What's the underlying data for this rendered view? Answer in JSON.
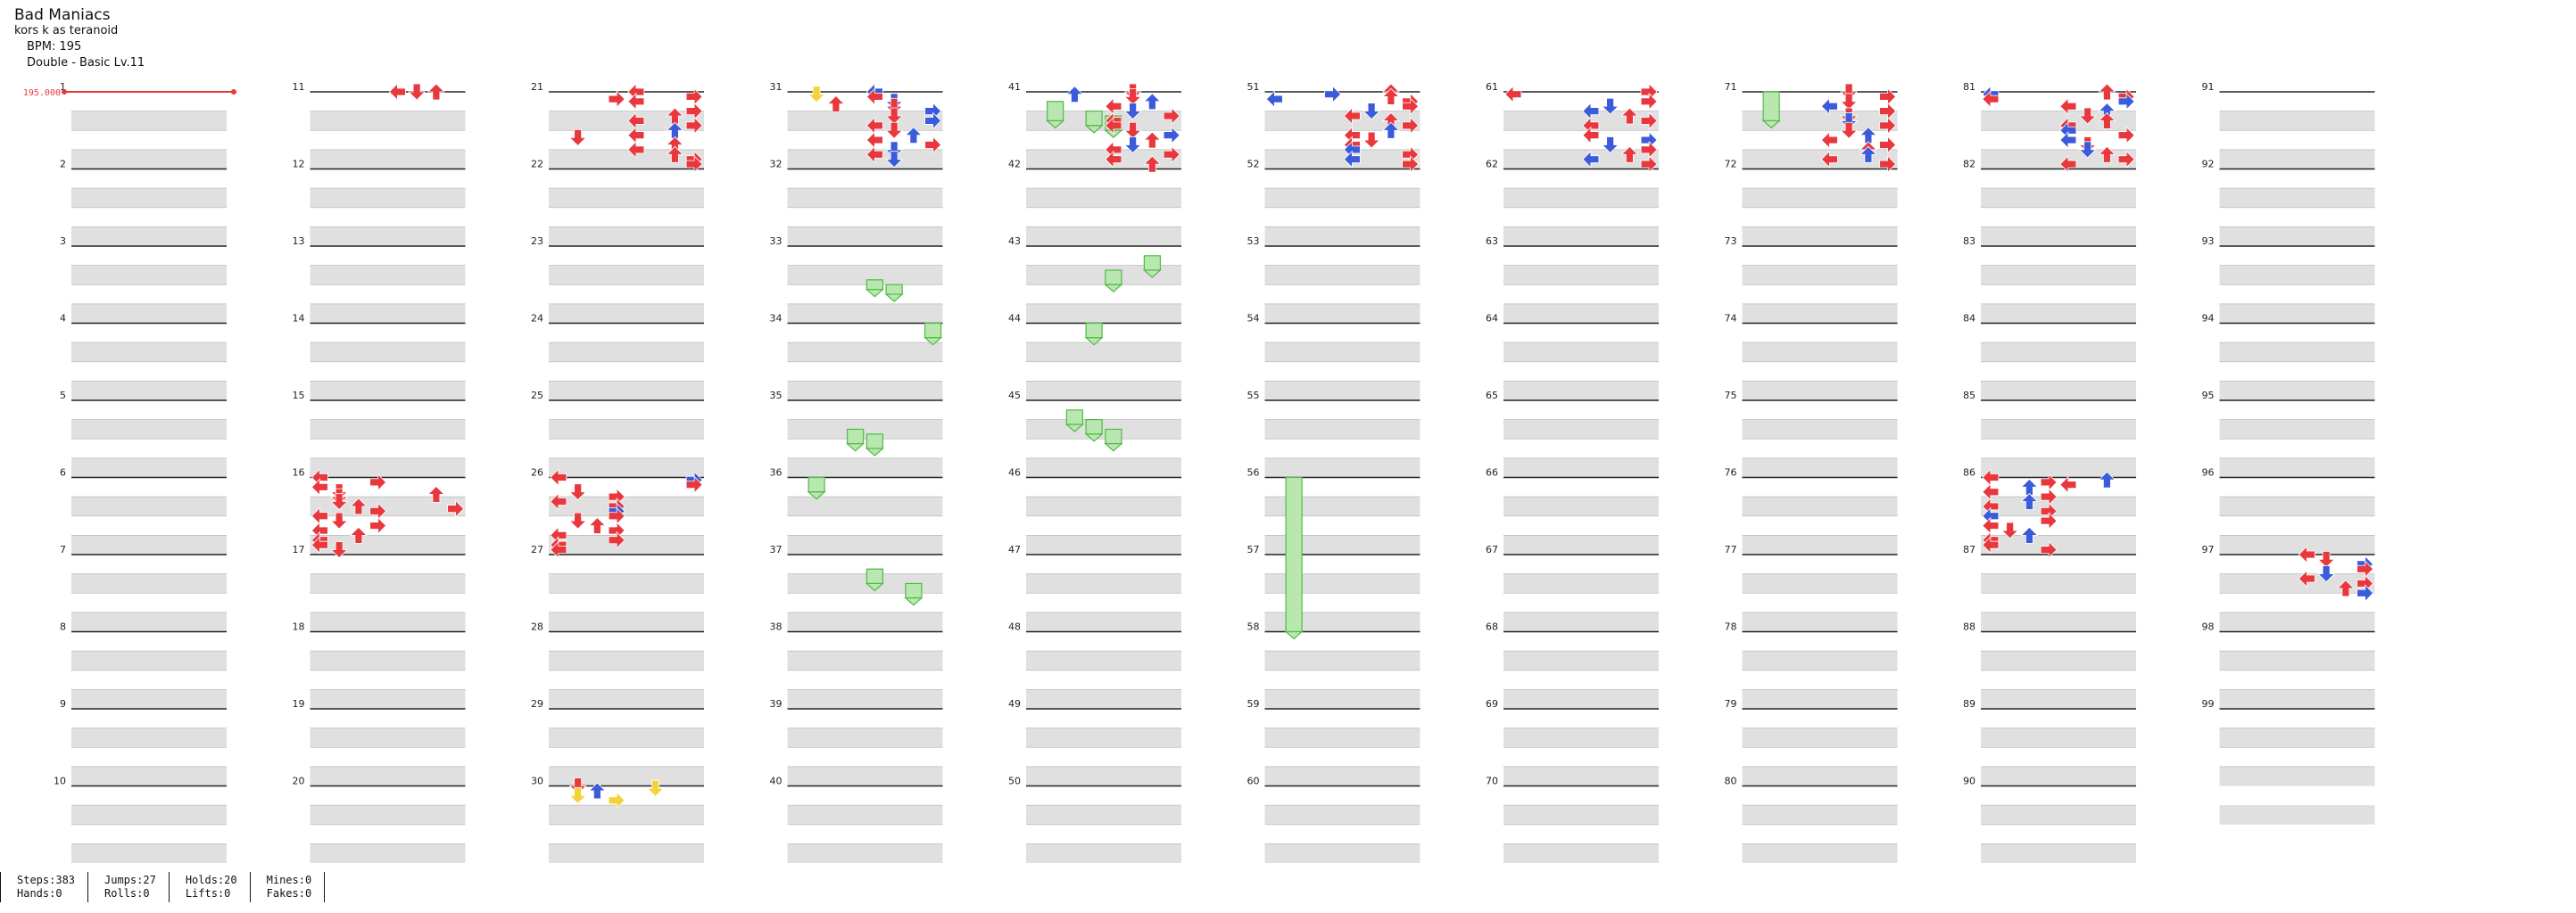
{
  "song": {
    "title": "Bad Maniacs",
    "artist": "kors k as teranoid",
    "bpm_label": "BPM: 195",
    "chart_label": "Double - Basic  Lv.11"
  },
  "bpm_change": {
    "measure": 1,
    "label": "195.000",
    "color": "#e8383d"
  },
  "measure_count": 99,
  "colors": {
    "red_arrow": "#e8383d",
    "blue_arrow": "#3b5bdb",
    "yellow_arrow": "#f2d43a",
    "hold_fill": "#b8e8b0",
    "hold_border": "#52b847",
    "row_shade": "#e0e0e0"
  },
  "sections": {
    "11": [
      [
        0,
        "L",
        "red"
      ],
      [
        0,
        "U",
        "red"
      ],
      [
        0,
        "D",
        "red"
      ]
    ],
    "16": [
      [
        0,
        "L",
        "red"
      ],
      [
        2,
        "R",
        "red"
      ],
      [
        4,
        "L",
        "red"
      ],
      [
        6,
        "D",
        "red"
      ],
      [
        7,
        "U",
        "red"
      ],
      [
        8,
        "D",
        "red"
      ],
      [
        10,
        "D",
        "red"
      ],
      [
        12,
        "U",
        "red"
      ],
      [
        13,
        "R",
        "red"
      ],
      [
        14,
        "R",
        "red"
      ],
      [
        16,
        "L",
        "red"
      ],
      [
        18,
        "D",
        "red"
      ],
      [
        20,
        "R",
        "red"
      ],
      [
        22,
        "L",
        "red"
      ],
      [
        24,
        "U",
        "red"
      ],
      [
        26,
        "L",
        "red"
      ],
      [
        28,
        "L",
        "red"
      ],
      [
        30,
        "D",
        "red"
      ]
    ],
    "21": [
      [
        0,
        "L",
        "red"
      ],
      [
        2,
        "R",
        "red"
      ],
      [
        3,
        "R",
        "red"
      ],
      [
        4,
        "L",
        "red"
      ],
      [
        8,
        "R",
        "red"
      ],
      [
        10,
        "U",
        "red"
      ],
      [
        12,
        "L",
        "red"
      ],
      [
        14,
        "R",
        "red"
      ],
      [
        16,
        "U",
        "blue"
      ],
      [
        18,
        "L",
        "red"
      ],
      [
        19,
        "D",
        "red"
      ],
      [
        22,
        "U",
        "red"
      ],
      [
        24,
        "L",
        "red"
      ],
      [
        26,
        "U",
        "red"
      ],
      [
        28,
        "R",
        "red"
      ],
      [
        30,
        "R",
        "red"
      ]
    ],
    "26": [
      [
        0,
        "L",
        "red"
      ],
      [
        1,
        "R",
        "blue"
      ],
      [
        3,
        "R",
        "red"
      ],
      [
        6,
        "D",
        "red"
      ],
      [
        8,
        "R",
        "red"
      ],
      [
        10,
        "L",
        "red"
      ],
      [
        12,
        "R",
        "red"
      ],
      [
        14,
        "R",
        "blue"
      ],
      [
        16,
        "R",
        "red"
      ],
      [
        18,
        "D",
        "red"
      ],
      [
        20,
        "U",
        "red"
      ],
      [
        22,
        "R",
        "red"
      ],
      [
        24,
        "L",
        "red"
      ],
      [
        26,
        "R",
        "red"
      ],
      [
        28,
        "L",
        "red"
      ],
      [
        30,
        "L",
        "red"
      ]
    ],
    "30": [
      [
        0,
        "D",
        "red"
      ],
      [
        1,
        "D",
        "yellow"
      ],
      [
        2,
        "U",
        "blue"
      ],
      [
        4,
        "D",
        "yellow"
      ],
      [
        6,
        "R",
        "yellow"
      ]
    ],
    "31": [
      [
        0,
        "L",
        "blue"
      ],
      [
        1,
        "D",
        "yellow"
      ],
      [
        2,
        "L",
        "red"
      ],
      [
        4,
        "D",
        "blue"
      ],
      [
        5,
        "U",
        "red"
      ],
      [
        6,
        "D",
        "red"
      ],
      [
        8,
        "R",
        "blue"
      ],
      [
        10,
        "D",
        "red"
      ],
      [
        12,
        "R",
        "blue"
      ],
      [
        14,
        "L",
        "red"
      ],
      [
        16,
        "D",
        "red"
      ],
      [
        18,
        "U",
        "blue"
      ],
      [
        20,
        "L",
        "red"
      ],
      [
        22,
        "R",
        "red"
      ],
      [
        24,
        "D",
        "blue"
      ],
      [
        26,
        "L",
        "red"
      ],
      [
        28,
        "D",
        "blue"
      ]
    ],
    "41": [
      [
        0,
        "D",
        "red"
      ],
      [
        1,
        "U",
        "blue"
      ],
      [
        2,
        "D",
        "red"
      ],
      [
        4,
        "U",
        "blue"
      ],
      [
        6,
        "L",
        "red"
      ],
      [
        8,
        "D",
        "blue"
      ],
      [
        10,
        "R",
        "red"
      ],
      [
        12,
        "L",
        "red"
      ],
      [
        14,
        "L",
        "red"
      ],
      [
        16,
        "D",
        "red"
      ],
      [
        18,
        "R",
        "blue"
      ],
      [
        20,
        "U",
        "red"
      ],
      [
        22,
        "D",
        "blue"
      ],
      [
        24,
        "L",
        "red"
      ],
      [
        26,
        "R",
        "red"
      ],
      [
        28,
        "L",
        "red"
      ],
      [
        30,
        "U",
        "red"
      ]
    ],
    "51": [
      [
        0,
        "U",
        "red"
      ],
      [
        1,
        "R",
        "blue"
      ],
      [
        2,
        "U",
        "red"
      ],
      [
        3,
        "L",
        "blue"
      ],
      [
        4,
        "R",
        "red"
      ],
      [
        6,
        "R",
        "red"
      ],
      [
        8,
        "D",
        "blue"
      ],
      [
        10,
        "L",
        "red"
      ],
      [
        12,
        "U",
        "red"
      ],
      [
        14,
        "R",
        "red"
      ],
      [
        16,
        "U",
        "blue"
      ],
      [
        18,
        "L",
        "red"
      ],
      [
        20,
        "D",
        "red"
      ],
      [
        22,
        "L",
        "red"
      ],
      [
        24,
        "L",
        "blue"
      ],
      [
        26,
        "R",
        "red"
      ],
      [
        28,
        "L",
        "blue"
      ],
      [
        30,
        "R",
        "red"
      ]
    ],
    "61": [
      [
        0,
        "R",
        "red"
      ],
      [
        1,
        "L",
        "red"
      ],
      [
        4,
        "R",
        "red"
      ],
      [
        6,
        "D",
        "blue"
      ],
      [
        8,
        "L",
        "blue"
      ],
      [
        10,
        "U",
        "red"
      ],
      [
        12,
        "R",
        "red"
      ],
      [
        14,
        "L",
        "red"
      ],
      [
        18,
        "L",
        "red"
      ],
      [
        20,
        "R",
        "blue"
      ],
      [
        22,
        "D",
        "blue"
      ],
      [
        24,
        "R",
        "red"
      ],
      [
        26,
        "U",
        "red"
      ],
      [
        28,
        "L",
        "blue"
      ],
      [
        30,
        "R",
        "red"
      ]
    ],
    "71": [
      [
        0,
        "D",
        "red"
      ],
      [
        2,
        "R",
        "red"
      ],
      [
        4,
        "D",
        "red"
      ],
      [
        6,
        "L",
        "blue"
      ],
      [
        8,
        "R",
        "red"
      ],
      [
        10,
        "D",
        "red"
      ],
      [
        12,
        "D",
        "blue"
      ],
      [
        14,
        "R",
        "red"
      ],
      [
        16,
        "D",
        "red"
      ],
      [
        18,
        "U",
        "blue"
      ],
      [
        20,
        "L",
        "red"
      ],
      [
        22,
        "R",
        "red"
      ],
      [
        24,
        "U",
        "red"
      ],
      [
        26,
        "U",
        "blue"
      ],
      [
        28,
        "L",
        "red"
      ],
      [
        30,
        "R",
        "red"
      ]
    ],
    "81": [
      [
        0,
        "U",
        "red"
      ],
      [
        1,
        "L",
        "blue"
      ],
      [
        2,
        "R",
        "red"
      ],
      [
        3,
        "L",
        "red"
      ],
      [
        4,
        "R",
        "blue"
      ],
      [
        6,
        "L",
        "red"
      ],
      [
        8,
        "U",
        "blue"
      ],
      [
        10,
        "D",
        "red"
      ],
      [
        12,
        "U",
        "red"
      ],
      [
        14,
        "L",
        "red"
      ],
      [
        16,
        "L",
        "blue"
      ],
      [
        18,
        "R",
        "red"
      ],
      [
        20,
        "L",
        "blue"
      ],
      [
        22,
        "D",
        "red"
      ],
      [
        24,
        "D",
        "blue"
      ],
      [
        26,
        "U",
        "red"
      ],
      [
        28,
        "R",
        "red"
      ],
      [
        30,
        "L",
        "red"
      ]
    ],
    "86": [
      [
        0,
        "L",
        "red"
      ],
      [
        1,
        "U",
        "blue"
      ],
      [
        2,
        "R",
        "red"
      ],
      [
        3,
        "L",
        "red"
      ],
      [
        4,
        "U",
        "blue"
      ],
      [
        6,
        "L",
        "red"
      ],
      [
        8,
        "R",
        "red"
      ],
      [
        10,
        "U",
        "blue"
      ],
      [
        12,
        "L",
        "red"
      ],
      [
        14,
        "R",
        "red"
      ],
      [
        16,
        "L",
        "blue"
      ],
      [
        18,
        "R",
        "red"
      ],
      [
        20,
        "L",
        "red"
      ],
      [
        22,
        "D",
        "red"
      ],
      [
        24,
        "U",
        "blue"
      ],
      [
        26,
        "L",
        "red"
      ],
      [
        28,
        "L",
        "red"
      ],
      [
        30,
        "R",
        "red"
      ]
    ],
    "97": [
      [
        0,
        "L",
        "red"
      ],
      [
        2,
        "D",
        "red"
      ],
      [
        4,
        "R",
        "blue"
      ],
      [
        6,
        "R",
        "red"
      ],
      [
        8,
        "D",
        "blue"
      ],
      [
        10,
        "L",
        "red"
      ],
      [
        12,
        "R",
        "red"
      ],
      [
        14,
        "U",
        "red"
      ],
      [
        16,
        "R",
        "blue"
      ]
    ]
  },
  "holds": [
    {
      "measure": 33,
      "col": 4,
      "from": 14,
      "to": 18
    },
    {
      "measure": 33,
      "col": 5,
      "from": 16,
      "to": 20
    },
    {
      "measure": 34,
      "col": 7,
      "from": 0,
      "to": 6
    },
    {
      "measure": 35,
      "col": 3,
      "from": 12,
      "to": 18
    },
    {
      "measure": 35,
      "col": 4,
      "from": 14,
      "to": 20
    },
    {
      "measure": 36,
      "col": 1,
      "from": 0,
      "to": 6
    },
    {
      "measure": 37,
      "col": 4,
      "from": 6,
      "to": 12
    },
    {
      "measure": 37,
      "col": 6,
      "from": 12,
      "to": 18
    },
    {
      "measure": 41,
      "col": 1,
      "from": 4,
      "to": 12
    },
    {
      "measure": 41,
      "col": 3,
      "from": 8,
      "to": 14
    },
    {
      "measure": 41,
      "col": 4,
      "from": 10,
      "to": 16
    },
    {
      "measure": 43,
      "col": 6,
      "from": 4,
      "to": 10
    },
    {
      "measure": 43,
      "col": 4,
      "from": 10,
      "to": 16
    },
    {
      "measure": 44,
      "col": 3,
      "from": 0,
      "to": 6
    },
    {
      "measure": 45,
      "col": 2,
      "from": 4,
      "to": 10
    },
    {
      "measure": 45,
      "col": 3,
      "from": 8,
      "to": 14
    },
    {
      "measure": 45,
      "col": 4,
      "from": 12,
      "to": 18
    },
    {
      "measure": 56,
      "col": 1,
      "from": 0,
      "to": 64
    },
    {
      "measure": 71,
      "col": 1,
      "from": 0,
      "to": 12
    }
  ],
  "stats": [
    [
      "Steps:383",
      "Hands:0"
    ],
    [
      "Jumps:27",
      "Rolls:0"
    ],
    [
      "Holds:20",
      "Lifts:0"
    ],
    [
      "Mines:0",
      "Fakes:0"
    ]
  ]
}
